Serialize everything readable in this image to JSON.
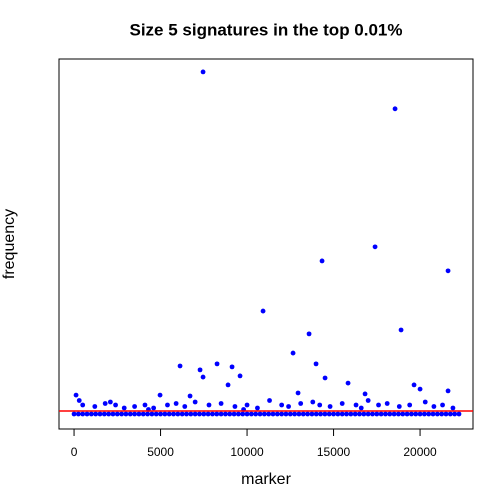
{
  "chart_data": {
    "type": "scatter",
    "title": "Size 5 signatures in the top 0.01%",
    "x_label": "marker",
    "y_label": "frequency",
    "xlim": [
      -870,
      23060
    ],
    "ylim": [
      -0.5,
      11.83
    ],
    "xticks": [
      0,
      5000,
      10000,
      15000,
      20000
    ],
    "color": "#0000ff",
    "hline": 0.1,
    "hline_color": "#ff0000",
    "x": [
      7457,
      18555,
      17399,
      14335,
      21618,
      10925,
      13584,
      18902,
      12659,
      6127,
      8266,
      9133,
      13988,
      7283,
      7457,
      9595,
      14509,
      15838,
      19653,
      20000,
      116,
      12948,
      8902,
      4971,
      6705,
      16821,
      21618,
      500,
      1200,
      1800,
      2400,
      2900,
      3500,
      4100,
      4600,
      5400,
      5900,
      6400,
      7000,
      7800,
      8500,
      9300,
      10000,
      10600,
      11300,
      12000,
      12400,
      13100,
      13800,
      14200,
      14800,
      15500,
      16300,
      17000,
      17600,
      18100,
      18800,
      19400,
      20300,
      20800,
      21300,
      21900,
      300,
      2100,
      4300,
      9800,
      16600,
      0,
      250,
      500,
      750,
      1000,
      1250,
      1500,
      1750,
      2000,
      2250,
      2500,
      2750,
      3000,
      3250,
      3500,
      3750,
      4000,
      4250,
      4500,
      4750,
      5000,
      5250,
      5500,
      5750,
      6000,
      6250,
      6500,
      6750,
      7000,
      7250,
      7500,
      7750,
      8000,
      8250,
      8500,
      8750,
      9000,
      9250,
      9500,
      9750,
      10000,
      10250,
      10500,
      10750,
      11000,
      11250,
      11500,
      11750,
      12000,
      12250,
      12500,
      12750,
      13000,
      13250,
      13500,
      13750,
      14000,
      14250,
      14500,
      14750,
      15000,
      15250,
      15500,
      15750,
      16000,
      16250,
      16500,
      16750,
      17000,
      17250,
      17500,
      17750,
      18000,
      18250,
      18500,
      18750,
      19000,
      19250,
      19500,
      19750,
      20000,
      20250,
      20500,
      20750,
      21000,
      21250,
      21500,
      21750,
      22000,
      22250
    ],
    "values": [
      11.4,
      10.17,
      5.57,
      5.1,
      4.77,
      3.43,
      2.67,
      2.8,
      2.03,
      1.6,
      1.67,
      1.57,
      1.67,
      1.47,
      1.23,
      1.27,
      1.2,
      1.03,
      0.97,
      0.83,
      0.63,
      0.7,
      0.97,
      0.63,
      0.6,
      0.67,
      0.77,
      0.3,
      0.25,
      0.35,
      0.3,
      0.2,
      0.25,
      0.3,
      0.2,
      0.3,
      0.35,
      0.25,
      0.4,
      0.3,
      0.35,
      0.25,
      0.3,
      0.2,
      0.45,
      0.3,
      0.25,
      0.35,
      0.4,
      0.3,
      0.25,
      0.35,
      0.3,
      0.45,
      0.3,
      0.35,
      0.25,
      0.3,
      0.4,
      0.25,
      0.3,
      0.2,
      0.45,
      0.4,
      0.15,
      0.15,
      0.2,
      0,
      0,
      0,
      0,
      0,
      0,
      0,
      0,
      0,
      0,
      0,
      0,
      0,
      0,
      0,
      0,
      0,
      0,
      0,
      0,
      0,
      0,
      0,
      0,
      0,
      0,
      0,
      0,
      0,
      0,
      0,
      0,
      0,
      0,
      0,
      0,
      0,
      0,
      0,
      0,
      0,
      0,
      0,
      0,
      0,
      0,
      0,
      0,
      0,
      0,
      0,
      0,
      0,
      0,
      0,
      0,
      0,
      0,
      0,
      0,
      0,
      0,
      0,
      0,
      0,
      0,
      0,
      0,
      0,
      0,
      0,
      0,
      0,
      0,
      0,
      0,
      0,
      0,
      0,
      0,
      0,
      0,
      0,
      0,
      0,
      0,
      0,
      0,
      0,
      0
    ]
  }
}
